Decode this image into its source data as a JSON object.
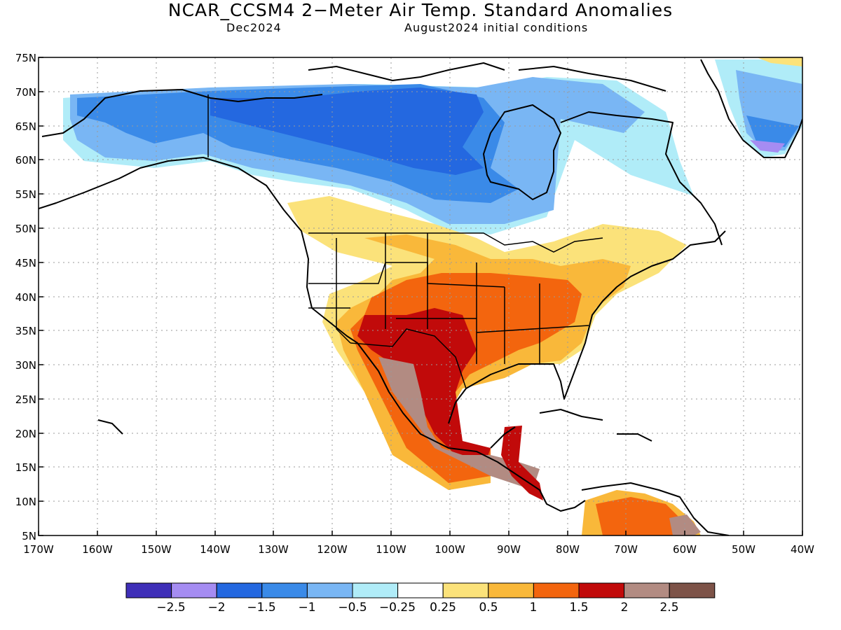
{
  "title": "NCAR_CCSM4 2−Meter Air Temp. Standard Anomalies",
  "subtitle_left": "Dec2024",
  "subtitle_right": "August2024 initial conditions",
  "lat_labels": [
    "75N",
    "70N",
    "65N",
    "60N",
    "55N",
    "50N",
    "45N",
    "40N",
    "35N",
    "30N",
    "25N",
    "20N",
    "15N",
    "10N",
    "5N"
  ],
  "lon_labels": [
    "170W",
    "160W",
    "150W",
    "140W",
    "130W",
    "120W",
    "110W",
    "100W",
    "90W",
    "80W",
    "70W",
    "60W",
    "50W",
    "40W"
  ],
  "colorbar": {
    "colors": [
      "#3f2fb8",
      "#a58cf2",
      "#2468e0",
      "#3a8ae8",
      "#79b6f4",
      "#b0ecf8",
      "#ffffff",
      "#fbe27a",
      "#f9b83a",
      "#f3650e",
      "#c10a0a",
      "#b28b82",
      "#7d5348"
    ],
    "labels": [
      "−2.5",
      "−2",
      "−1.5",
      "−1",
      "−0.5",
      "−0.25",
      "0.25",
      "0.5",
      "1",
      "1.5",
      "2",
      "2.5"
    ]
  }
}
